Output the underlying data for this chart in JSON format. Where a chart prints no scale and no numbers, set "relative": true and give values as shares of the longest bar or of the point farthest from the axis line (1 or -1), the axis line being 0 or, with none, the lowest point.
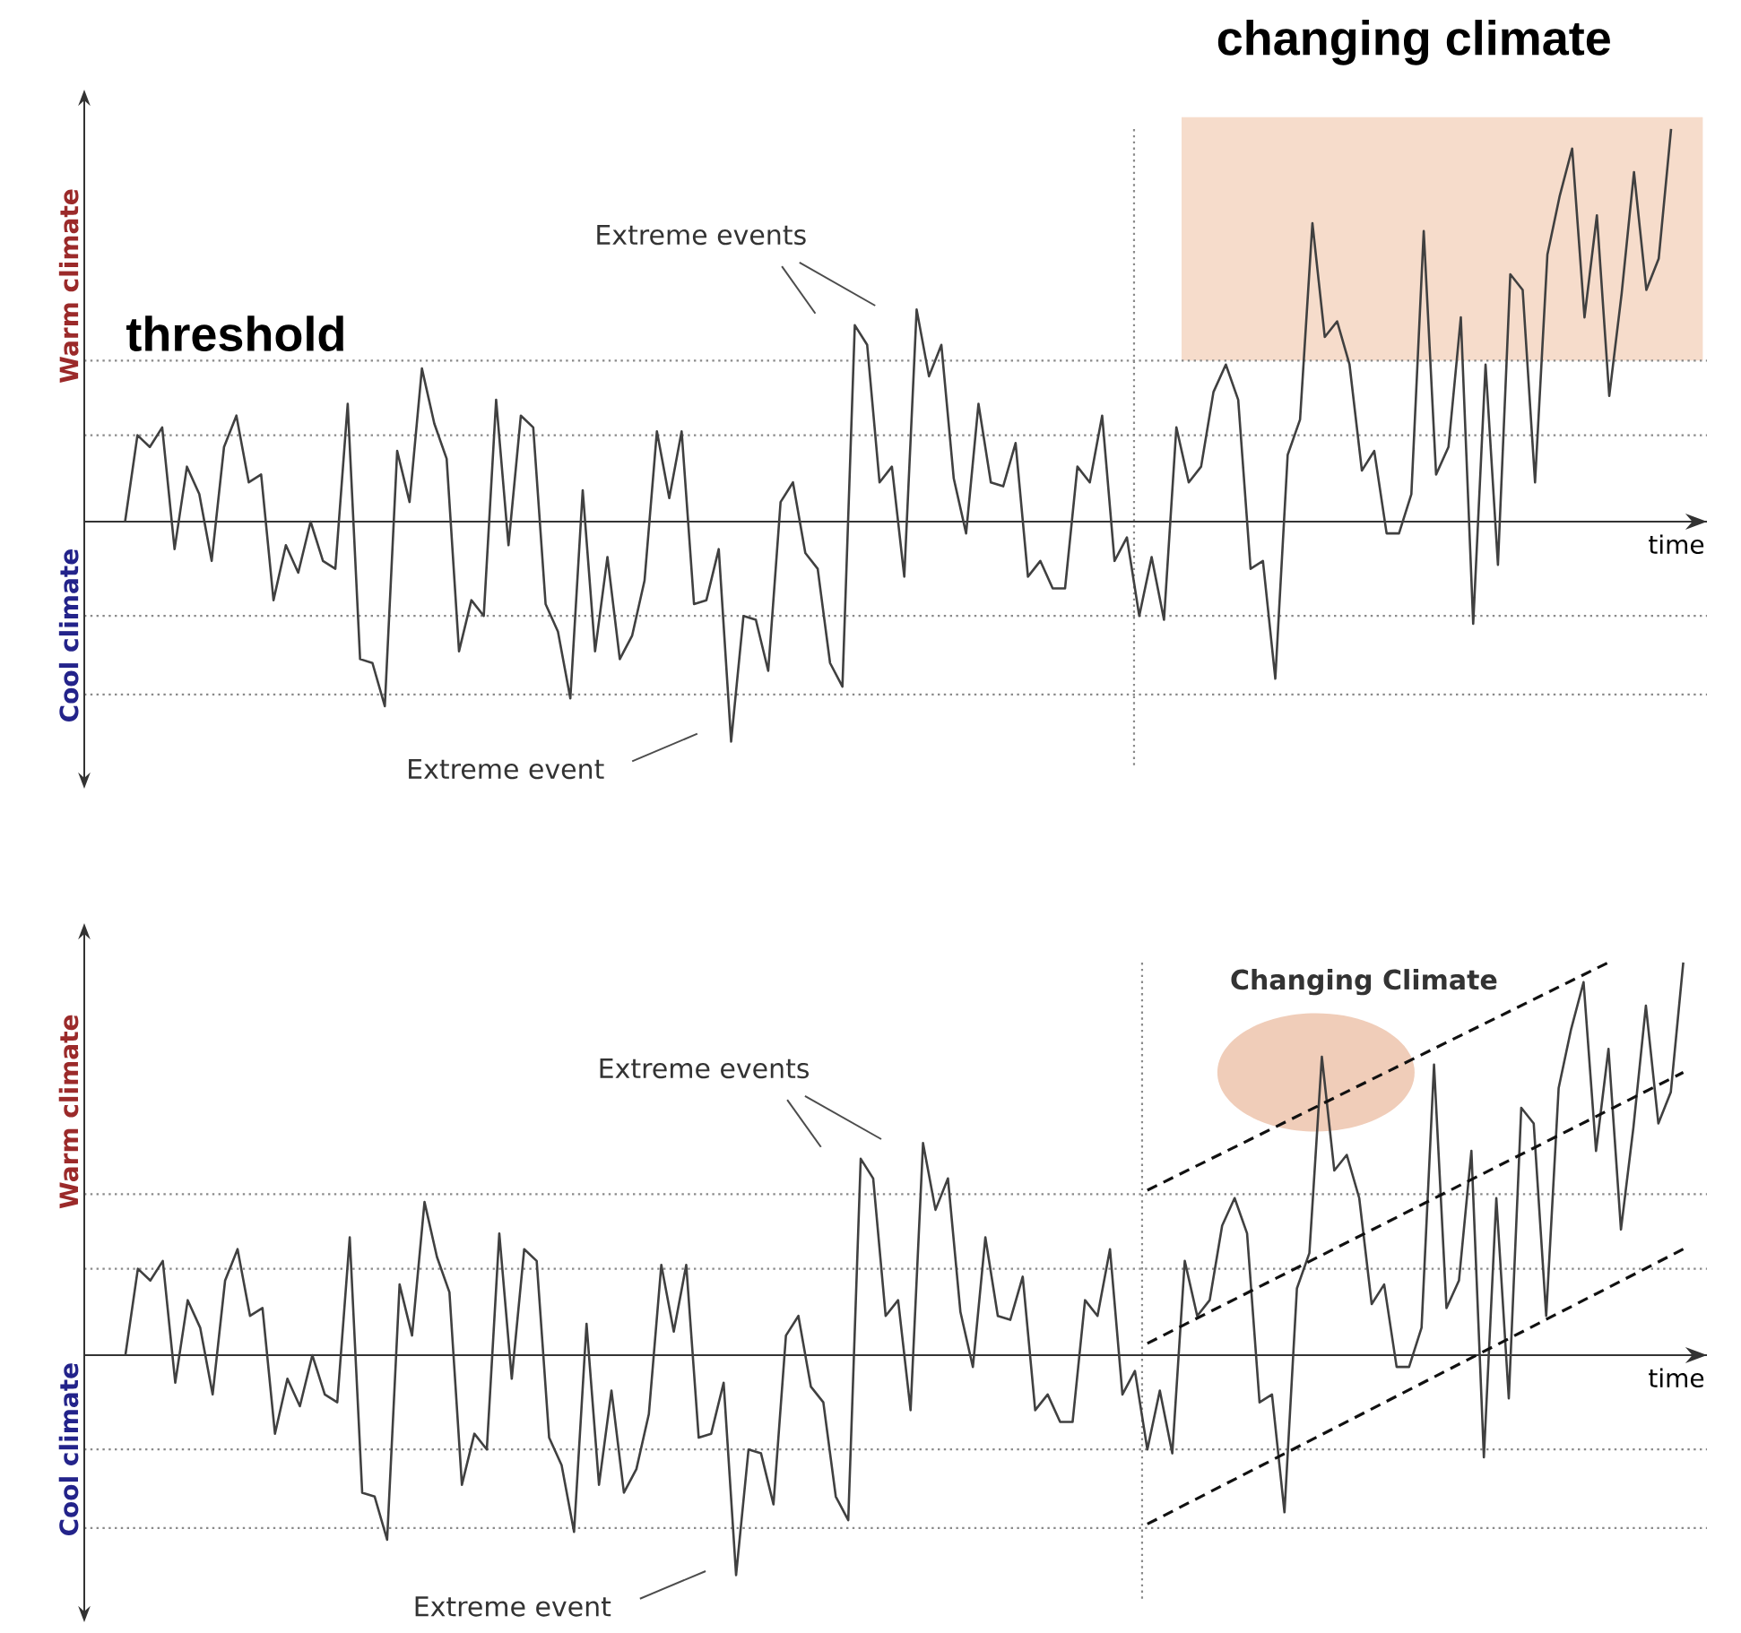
{
  "chart_data": [
    {
      "type": "line",
      "relative": true,
      "xlabel": "time",
      "categories": [
        null,
        null,
        null,
        null,
        null,
        null,
        null,
        null,
        null,
        null,
        null,
        null,
        null,
        null,
        null,
        null,
        null,
        null,
        null,
        null,
        null,
        null,
        null,
        null,
        null,
        null,
        null,
        null,
        null,
        null,
        null,
        null,
        null,
        null,
        null,
        null,
        null,
        null,
        null,
        null,
        null,
        null,
        null,
        null,
        null,
        null,
        null,
        null,
        null,
        null,
        null,
        null,
        null,
        null,
        null,
        null,
        null,
        null,
        null,
        null,
        null,
        null,
        null,
        null,
        null,
        null,
        null,
        null,
        null,
        null,
        null,
        null,
        null,
        null,
        null,
        null,
        null,
        null,
        null,
        null,
        null,
        null,
        null,
        null,
        null,
        null,
        null,
        null,
        null,
        null,
        null,
        null,
        null,
        null,
        null,
        null,
        null,
        null,
        null,
        null,
        null,
        null,
        null,
        null,
        null,
        null,
        null,
        null,
        null,
        null,
        null,
        null,
        null,
        null,
        null,
        null,
        null,
        null,
        null,
        null,
        null,
        null,
        null,
        null,
        null,
        null
      ],
      "series": [
        {
          "color": "#404040",
          "values": [
            0.0,
            0.22,
            0.19,
            0.24,
            -0.07,
            0.14,
            0.07,
            -0.1,
            0.19,
            0.27,
            0.1,
            0.12,
            -0.2,
            -0.06,
            -0.13,
            0.0,
            -0.1,
            -0.12,
            0.3,
            -0.35,
            -0.36,
            -0.47,
            0.18,
            0.05,
            0.39,
            0.25,
            0.16,
            -0.33,
            -0.2,
            -0.24,
            0.31,
            -0.06,
            0.27,
            0.24,
            -0.21,
            -0.28,
            -0.45,
            0.08,
            -0.33,
            -0.09,
            -0.35,
            -0.29,
            -0.15,
            0.23,
            0.06,
            0.23,
            -0.21,
            -0.2,
            -0.07,
            -0.56,
            -0.24,
            -0.25,
            -0.38,
            0.05,
            0.1,
            -0.08,
            -0.12,
            -0.36,
            -0.42,
            0.5,
            0.45,
            0.1,
            0.14,
            -0.14,
            0.54,
            0.37,
            0.45,
            0.11,
            -0.03,
            0.3,
            0.1,
            0.09,
            0.2,
            -0.14,
            -0.1,
            -0.17,
            -0.17,
            0.14,
            0.1,
            0.27,
            -0.1,
            -0.04,
            -0.24,
            -0.09,
            -0.25,
            0.24,
            0.1,
            0.14,
            0.33,
            0.4,
            0.31,
            -0.12,
            -0.1,
            -0.4,
            0.17,
            0.26,
            0.76,
            0.47,
            0.51,
            0.4,
            0.13,
            0.18,
            -0.03,
            -0.03,
            0.07,
            0.74,
            0.12,
            0.19,
            0.52,
            -0.26,
            0.4,
            -0.11,
            0.63,
            0.59,
            0.1,
            0.68,
            0.83,
            0.95,
            0.52,
            0.78,
            0.32,
            0.58,
            0.89,
            0.59,
            0.67,
            1.0
          ]
        }
      ],
      "ref_lines": [
        {
          "axis": "y",
          "value": 0.41,
          "label": "threshold",
          "color": "#8a8a8a",
          "line_style": "dotted"
        },
        {
          "axis": "y",
          "value": 0.22,
          "color": "#8a8a8a",
          "line_style": "dotted"
        },
        {
          "axis": "y",
          "value": -0.24,
          "color": "#8a8a8a",
          "line_style": "dotted"
        },
        {
          "axis": "y",
          "value": -0.44,
          "color": "#8a8a8a",
          "line_style": "dotted"
        }
      ],
      "annotations": [
        "Extreme events",
        "Extreme event",
        "Warm climate",
        "Cool climate",
        "changing climate"
      ]
    },
    {
      "type": "line",
      "relative": true,
      "xlabel": "time",
      "categories": [
        null,
        null,
        null,
        null,
        null,
        null,
        null,
        null,
        null,
        null,
        null,
        null,
        null,
        null,
        null,
        null,
        null,
        null,
        null,
        null,
        null,
        null,
        null,
        null,
        null,
        null,
        null,
        null,
        null,
        null,
        null,
        null,
        null,
        null,
        null,
        null,
        null,
        null,
        null,
        null,
        null,
        null,
        null,
        null,
        null,
        null,
        null,
        null,
        null,
        null,
        null,
        null,
        null,
        null,
        null,
        null,
        null,
        null,
        null,
        null,
        null,
        null,
        null,
        null,
        null,
        null,
        null,
        null,
        null,
        null,
        null,
        null,
        null,
        null,
        null,
        null,
        null,
        null,
        null,
        null,
        null,
        null,
        null,
        null,
        null,
        null,
        null,
        null,
        null,
        null,
        null,
        null,
        null,
        null,
        null,
        null,
        null,
        null,
        null,
        null,
        null,
        null,
        null,
        null,
        null,
        null,
        null,
        null,
        null,
        null,
        null,
        null,
        null,
        null,
        null,
        null,
        null,
        null,
        null,
        null,
        null,
        null,
        null,
        null,
        null,
        null
      ],
      "series": [
        {
          "color": "#404040",
          "values": [
            0.0,
            0.22,
            0.19,
            0.24,
            -0.07,
            0.14,
            0.07,
            -0.1,
            0.19,
            0.27,
            0.1,
            0.12,
            -0.2,
            -0.06,
            -0.13,
            0.0,
            -0.1,
            -0.12,
            0.3,
            -0.35,
            -0.36,
            -0.47,
            0.18,
            0.05,
            0.39,
            0.25,
            0.16,
            -0.33,
            -0.2,
            -0.24,
            0.31,
            -0.06,
            0.27,
            0.24,
            -0.21,
            -0.28,
            -0.45,
            0.08,
            -0.33,
            -0.09,
            -0.35,
            -0.29,
            -0.15,
            0.23,
            0.06,
            0.23,
            -0.21,
            -0.2,
            -0.07,
            -0.56,
            -0.24,
            -0.25,
            -0.38,
            0.05,
            0.1,
            -0.08,
            -0.12,
            -0.36,
            -0.42,
            0.5,
            0.45,
            0.1,
            0.14,
            -0.14,
            0.54,
            0.37,
            0.45,
            0.11,
            -0.03,
            0.3,
            0.1,
            0.09,
            0.2,
            -0.14,
            -0.1,
            -0.17,
            -0.17,
            0.14,
            0.1,
            0.27,
            -0.1,
            -0.04,
            -0.24,
            -0.09,
            -0.25,
            0.24,
            0.1,
            0.14,
            0.33,
            0.4,
            0.31,
            -0.12,
            -0.1,
            -0.4,
            0.17,
            0.26,
            0.76,
            0.47,
            0.51,
            0.4,
            0.13,
            0.18,
            -0.03,
            -0.03,
            0.07,
            0.74,
            0.12,
            0.19,
            0.52,
            -0.26,
            0.4,
            -0.11,
            0.63,
            0.59,
            0.1,
            0.68,
            0.83,
            0.95,
            0.52,
            0.78,
            0.32,
            0.58,
            0.89,
            0.59,
            0.67,
            1.0
          ]
        },
        {
          "type": "line",
          "color": "#111111",
          "line_style": "dashed",
          "values": [
            null,
            null,
            null,
            null,
            null,
            null,
            null,
            null,
            null,
            null,
            null,
            null,
            null,
            null,
            null,
            null,
            null,
            null,
            null,
            null,
            null,
            null,
            null,
            null,
            null,
            null,
            null,
            null,
            null,
            null,
            null,
            null,
            null,
            null,
            null,
            null,
            null,
            null,
            null,
            null,
            null,
            null,
            null,
            null,
            null,
            null,
            null,
            null,
            null,
            null,
            null,
            null,
            null,
            null,
            null,
            null,
            null,
            null,
            null,
            null,
            null,
            null,
            null,
            null,
            null,
            null,
            null,
            null,
            null,
            null,
            null,
            null,
            null,
            null,
            null,
            null,
            null,
            null,
            null,
            null,
            null,
            null,
            0.42,
            null,
            null,
            null,
            null,
            null,
            null,
            null,
            null,
            null,
            null,
            null,
            null,
            null,
            null,
            null,
            null,
            null,
            null,
            null,
            null,
            null,
            null,
            null,
            null,
            null,
            null,
            null,
            null,
            null,
            null,
            null,
            null,
            null,
            null,
            null,
            null,
            1.0,
            null,
            null,
            null,
            null,
            null,
            null
          ]
        },
        {
          "type": "line",
          "color": "#111111",
          "line_style": "dashed",
          "values": [
            null,
            null,
            null,
            null,
            null,
            null,
            null,
            null,
            null,
            null,
            null,
            null,
            null,
            null,
            null,
            null,
            null,
            null,
            null,
            null,
            null,
            null,
            null,
            null,
            null,
            null,
            null,
            null,
            null,
            null,
            null,
            null,
            null,
            null,
            null,
            null,
            null,
            null,
            null,
            null,
            null,
            null,
            null,
            null,
            null,
            null,
            null,
            null,
            null,
            null,
            null,
            null,
            null,
            null,
            null,
            null,
            null,
            null,
            null,
            null,
            null,
            null,
            null,
            null,
            null,
            null,
            null,
            null,
            null,
            null,
            null,
            null,
            null,
            null,
            null,
            null,
            null,
            null,
            null,
            null,
            null,
            null,
            0.03,
            null,
            null,
            null,
            null,
            null,
            null,
            null,
            null,
            null,
            null,
            null,
            null,
            null,
            null,
            null,
            null,
            null,
            null,
            null,
            null,
            null,
            null,
            null,
            null,
            null,
            null,
            null,
            null,
            null,
            null,
            null,
            null,
            null,
            null,
            null,
            null,
            null,
            null,
            null,
            null,
            null,
            null,
            0.72
          ]
        },
        {
          "type": "line",
          "color": "#111111",
          "line_style": "dashed",
          "values": [
            null,
            null,
            null,
            null,
            null,
            null,
            null,
            null,
            null,
            null,
            null,
            null,
            null,
            null,
            null,
            null,
            null,
            null,
            null,
            null,
            null,
            null,
            null,
            null,
            null,
            null,
            null,
            null,
            null,
            null,
            null,
            null,
            null,
            null,
            null,
            null,
            null,
            null,
            null,
            null,
            null,
            null,
            null,
            null,
            null,
            null,
            null,
            null,
            null,
            null,
            null,
            null,
            null,
            null,
            null,
            null,
            null,
            null,
            null,
            null,
            null,
            null,
            null,
            null,
            null,
            null,
            null,
            null,
            null,
            null,
            null,
            null,
            null,
            null,
            null,
            null,
            null,
            null,
            null,
            null,
            null,
            null,
            -0.43,
            null,
            null,
            null,
            null,
            null,
            null,
            null,
            null,
            null,
            null,
            null,
            null,
            null,
            null,
            null,
            null,
            null,
            null,
            null,
            null,
            null,
            null,
            null,
            null,
            null,
            null,
            null,
            null,
            null,
            null,
            null,
            null,
            null,
            null,
            null,
            null,
            null,
            null,
            null,
            null,
            null,
            null,
            0.27
          ]
        }
      ],
      "ref_lines": [
        {
          "axis": "y",
          "value": 0.41,
          "color": "#8a8a8a",
          "line_style": "dotted"
        },
        {
          "axis": "y",
          "value": 0.22,
          "color": "#8a8a8a",
          "line_style": "dotted"
        },
        {
          "axis": "y",
          "value": -0.24,
          "color": "#8a8a8a",
          "line_style": "dotted"
        },
        {
          "axis": "y",
          "value": -0.44,
          "color": "#8a8a8a",
          "line_style": "dotted"
        }
      ],
      "annotations": [
        "Changing Climate",
        "Extreme events",
        "Extreme event",
        "Warm climate",
        "Cool climate"
      ]
    }
  ]
}
